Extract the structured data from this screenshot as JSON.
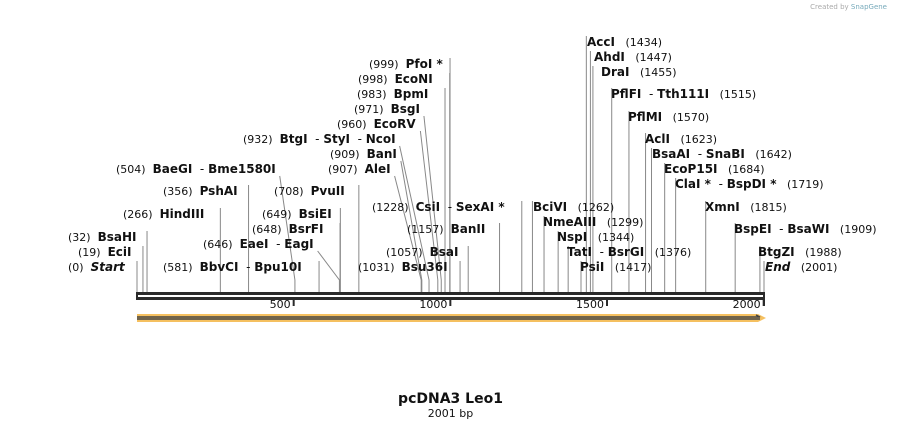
{
  "credit": {
    "prefix": "Created by",
    "brand": "SnapGene"
  },
  "map": {
    "title": "pcDNA3 Leo1",
    "length_label": "2001 bp",
    "length": 2001,
    "ticks": [
      "500",
      "1000",
      "1500",
      "2000"
    ],
    "tick_values": [
      500,
      1000,
      1500,
      2000
    ],
    "feature_color": "#f5c060",
    "sites": [
      {
        "pos": 0,
        "num": "(0)",
        "names": [
          "Start"
        ],
        "italic": true,
        "side": "left"
      },
      {
        "pos": 19,
        "num": "(19)",
        "names": [
          "EciI"
        ],
        "side": "left"
      },
      {
        "pos": 32,
        "num": "(32)",
        "names": [
          "BsaHI"
        ],
        "side": "left"
      },
      {
        "pos": 266,
        "num": "(266)",
        "names": [
          "HindIII"
        ],
        "side": "left"
      },
      {
        "pos": 356,
        "num": "(356)",
        "names": [
          "PshAI"
        ],
        "side": "left"
      },
      {
        "pos": 504,
        "num": "(504)",
        "names": [
          "BaeGI",
          "Bme1580I"
        ],
        "side": "left"
      },
      {
        "pos": 581,
        "num": "(581)",
        "names": [
          "BbvCI",
          "Bpu10I"
        ],
        "side": "left"
      },
      {
        "pos": 646,
        "num": "(646)",
        "names": [
          "EaeI",
          "EagI"
        ],
        "side": "left"
      },
      {
        "pos": 648,
        "num": "(648)",
        "names": [
          "BsrFI"
        ],
        "side": "left"
      },
      {
        "pos": 649,
        "num": "(649)",
        "names": [
          "BsiEI"
        ],
        "side": "left"
      },
      {
        "pos": 708,
        "num": "(708)",
        "names": [
          "PvuII"
        ],
        "side": "left"
      },
      {
        "pos": 907,
        "num": "(907)",
        "names": [
          "AleI"
        ],
        "side": "left"
      },
      {
        "pos": 909,
        "num": "(909)",
        "names": [
          "BanI"
        ],
        "side": "left"
      },
      {
        "pos": 932,
        "num": "(932)",
        "names": [
          "BtgI",
          "StyI",
          "NcoI"
        ],
        "side": "left"
      },
      {
        "pos": 960,
        "num": "(960)",
        "names": [
          "EcoRV"
        ],
        "side": "left"
      },
      {
        "pos": 971,
        "num": "(971)",
        "names": [
          "BsgI"
        ],
        "side": "left"
      },
      {
        "pos": 983,
        "num": "(983)",
        "names": [
          "BpmI"
        ],
        "side": "left"
      },
      {
        "pos": 998,
        "num": "(998)",
        "names": [
          "EcoNI"
        ],
        "side": "left"
      },
      {
        "pos": 999,
        "num": "(999)",
        "names": [
          "PfoI *"
        ],
        "side": "left"
      },
      {
        "pos": 1031,
        "num": "(1031)",
        "names": [
          "Bsu36I"
        ],
        "side": "left"
      },
      {
        "pos": 1057,
        "num": "(1057)",
        "names": [
          "BsaI"
        ],
        "side": "left"
      },
      {
        "pos": 1157,
        "num": "(1157)",
        "names": [
          "BanII"
        ],
        "side": "left"
      },
      {
        "pos": 1228,
        "num": "(1228)",
        "names": [
          "CsiI",
          "SexAI *"
        ],
        "side": "left"
      },
      {
        "pos": 1262,
        "num": "(1262)",
        "names": [
          "BciVI"
        ],
        "side": "right"
      },
      {
        "pos": 1299,
        "num": "(1299)",
        "names": [
          "NmeAIII"
        ],
        "side": "right"
      },
      {
        "pos": 1344,
        "num": "(1344)",
        "names": [
          "NspI"
        ],
        "side": "right"
      },
      {
        "pos": 1376,
        "num": "(1376)",
        "names": [
          "TatI",
          "BsrGI"
        ],
        "side": "right"
      },
      {
        "pos": 1417,
        "num": "(1417)",
        "names": [
          "PsiI"
        ],
        "side": "right"
      },
      {
        "pos": 1434,
        "num": "(1434)",
        "names": [
          "AccI"
        ],
        "side": "right"
      },
      {
        "pos": 1447,
        "num": "(1447)",
        "names": [
          "AhdI"
        ],
        "side": "right"
      },
      {
        "pos": 1455,
        "num": "(1455)",
        "names": [
          "DraI"
        ],
        "side": "right"
      },
      {
        "pos": 1515,
        "num": "(1515)",
        "names": [
          "PflFI",
          "Tth111I"
        ],
        "side": "right"
      },
      {
        "pos": 1570,
        "num": "(1570)",
        "names": [
          "PflMI"
        ],
        "side": "right"
      },
      {
        "pos": 1623,
        "num": "(1623)",
        "names": [
          "AclI"
        ],
        "side": "right"
      },
      {
        "pos": 1642,
        "num": "(1642)",
        "names": [
          "BsaAI",
          "SnaBI"
        ],
        "side": "right"
      },
      {
        "pos": 1684,
        "num": "(1684)",
        "names": [
          "EcoP15I"
        ],
        "side": "right"
      },
      {
        "pos": 1719,
        "num": "(1719)",
        "names": [
          "ClaI *",
          "BspDI *"
        ],
        "side": "right"
      },
      {
        "pos": 1815,
        "num": "(1815)",
        "names": [
          "XmnI"
        ],
        "side": "right"
      },
      {
        "pos": 1909,
        "num": "(1909)",
        "names": [
          "BspEI",
          "BsaWI"
        ],
        "side": "right"
      },
      {
        "pos": 1988,
        "num": "(1988)",
        "names": [
          "BtgZI"
        ],
        "side": "right"
      },
      {
        "pos": 2001,
        "num": "(2001)",
        "names": [
          "End"
        ],
        "italic": true,
        "side": "right"
      }
    ]
  }
}
